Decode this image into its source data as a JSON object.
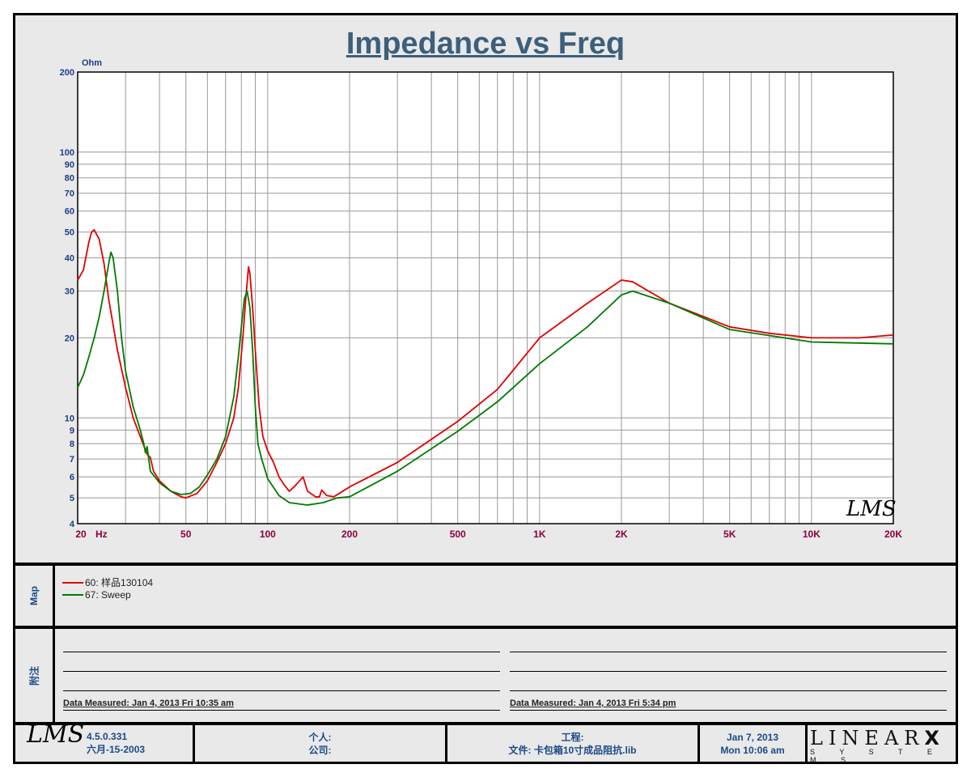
{
  "chart_data": {
    "type": "line",
    "title": "Impedance vs Freq",
    "ylabel": "Ohm",
    "xlabel": "Hz",
    "xscale": "log",
    "yscale": "log",
    "xlim": [
      20,
      20000
    ],
    "ylim": [
      4,
      200
    ],
    "x_tick_labels": [
      {
        "v": 20,
        "t": "20"
      },
      {
        "v": 50,
        "t": "50"
      },
      {
        "v": 100,
        "t": "100"
      },
      {
        "v": 200,
        "t": "200"
      },
      {
        "v": 500,
        "t": "500"
      },
      {
        "v": 1000,
        "t": "1K"
      },
      {
        "v": 2000,
        "t": "2K"
      },
      {
        "v": 5000,
        "t": "5K"
      },
      {
        "v": 10000,
        "t": "10K"
      },
      {
        "v": 20000,
        "t": "20K"
      }
    ],
    "y_tick_labels": [
      4,
      5,
      6,
      7,
      8,
      9,
      10,
      20,
      30,
      40,
      50,
      60,
      70,
      80,
      90,
      100,
      200
    ],
    "grid": true,
    "series": [
      {
        "name": "60: 样品130104",
        "color": "#e00000",
        "points": [
          [
            20,
            33
          ],
          [
            21,
            36
          ],
          [
            22,
            46
          ],
          [
            22.5,
            50
          ],
          [
            23,
            51
          ],
          [
            24,
            47
          ],
          [
            25,
            38
          ],
          [
            26,
            28
          ],
          [
            28,
            18
          ],
          [
            30,
            13
          ],
          [
            32,
            10
          ],
          [
            34,
            8.5
          ],
          [
            36,
            7.3
          ],
          [
            37,
            7.1
          ],
          [
            38,
            6.3
          ],
          [
            40,
            5.8
          ],
          [
            44,
            5.3
          ],
          [
            48,
            5.05
          ],
          [
            50,
            5.0
          ],
          [
            55,
            5.2
          ],
          [
            60,
            5.8
          ],
          [
            65,
            6.8
          ],
          [
            70,
            8
          ],
          [
            75,
            10
          ],
          [
            78,
            13
          ],
          [
            81,
            20
          ],
          [
            83,
            28
          ],
          [
            85,
            37
          ],
          [
            86,
            35
          ],
          [
            88,
            26
          ],
          [
            90,
            18
          ],
          [
            93,
            11
          ],
          [
            96,
            8.5
          ],
          [
            100,
            7.5
          ],
          [
            105,
            6.8
          ],
          [
            110,
            6
          ],
          [
            115,
            5.6
          ],
          [
            120,
            5.3
          ],
          [
            125,
            5.5
          ],
          [
            135,
            6
          ],
          [
            140,
            5.3
          ],
          [
            150,
            5.05
          ],
          [
            155,
            5.05
          ],
          [
            158,
            5.35
          ],
          [
            165,
            5.1
          ],
          [
            175,
            5.05
          ],
          [
            200,
            5.5
          ],
          [
            300,
            6.8
          ],
          [
            500,
            9.7
          ],
          [
            700,
            12.8
          ],
          [
            1000,
            20
          ],
          [
            1500,
            27
          ],
          [
            2000,
            33
          ],
          [
            2200,
            32.5
          ],
          [
            3000,
            27
          ],
          [
            5000,
            22
          ],
          [
            7000,
            20.8
          ],
          [
            10000,
            20
          ],
          [
            15000,
            20
          ],
          [
            20000,
            20.5
          ]
        ]
      },
      {
        "name": "67: Sweep",
        "color": "#007a00",
        "points": [
          [
            20,
            13
          ],
          [
            21,
            14.5
          ],
          [
            22,
            17
          ],
          [
            23,
            20
          ],
          [
            24,
            24
          ],
          [
            25,
            30
          ],
          [
            26,
            38
          ],
          [
            26.5,
            42
          ],
          [
            27,
            40
          ],
          [
            28,
            30
          ],
          [
            29,
            20
          ],
          [
            30,
            15
          ],
          [
            32,
            11
          ],
          [
            34,
            9
          ],
          [
            35,
            8
          ],
          [
            35.5,
            7.4
          ],
          [
            36,
            7.8
          ],
          [
            37,
            6.3
          ],
          [
            40,
            5.7
          ],
          [
            44,
            5.3
          ],
          [
            48,
            5.15
          ],
          [
            52,
            5.2
          ],
          [
            56,
            5.5
          ],
          [
            60,
            6.1
          ],
          [
            65,
            7
          ],
          [
            70,
            8.5
          ],
          [
            75,
            12
          ],
          [
            78,
            17
          ],
          [
            80,
            22
          ],
          [
            82,
            28
          ],
          [
            84,
            30
          ],
          [
            86,
            26
          ],
          [
            88,
            18
          ],
          [
            90,
            11
          ],
          [
            92,
            8
          ],
          [
            95,
            7
          ],
          [
            100,
            5.9
          ],
          [
            110,
            5.1
          ],
          [
            120,
            4.8
          ],
          [
            140,
            4.7
          ],
          [
            160,
            4.8
          ],
          [
            180,
            5.0
          ],
          [
            200,
            5.05
          ],
          [
            300,
            6.3
          ],
          [
            500,
            8.9
          ],
          [
            700,
            11.5
          ],
          [
            1000,
            16
          ],
          [
            1500,
            22
          ],
          [
            2000,
            29
          ],
          [
            2200,
            30
          ],
          [
            3000,
            27
          ],
          [
            5000,
            21.5
          ],
          [
            10000,
            19.3
          ],
          [
            20000,
            19.0
          ]
        ]
      }
    ]
  },
  "watermark": "LMS",
  "map": {
    "label": "Map",
    "legend": [
      {
        "text": "60: 样品130104",
        "color": "#e00000"
      },
      {
        "text": "67: Sweep",
        "color": "#007a00"
      }
    ]
  },
  "notes": {
    "label": "附注",
    "left_measured": "Data Measured: Jan  4, 2013  Fri 10:35 am",
    "right_measured": "Data Measured: Jan  4, 2013  Fri  5:34 pm"
  },
  "footer": {
    "logo": "LMS",
    "version": "4.5.0.331",
    "version_date": "六月-15-2003",
    "personal": "个人:",
    "company": "公司:",
    "project": "工程:",
    "file": "文件: 卡包箱10寸成品阻抗.lib",
    "date": "Jan  7, 2013",
    "time": "Mon 10:06 am",
    "brand": "LINEAR",
    "brand_x": "X",
    "brand_sub": "S Y S T E M S"
  }
}
